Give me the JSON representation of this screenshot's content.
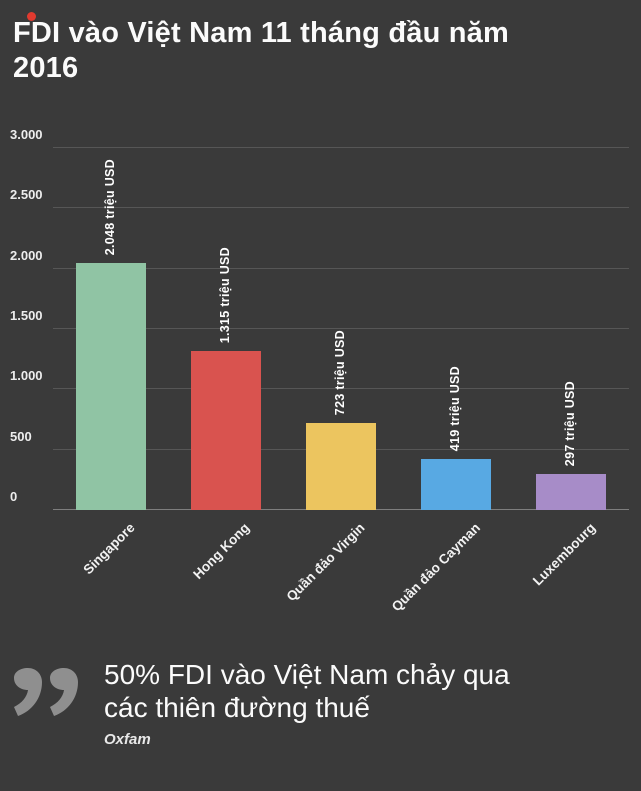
{
  "page": {
    "title": "FDI vào Việt Nam 11 tháng đầu năm 2016"
  },
  "chart_data": {
    "type": "bar",
    "title": "FDI vào Việt Nam 11 tháng đầu năm 2016",
    "categories": [
      "Singapore",
      "Hong Kong",
      "Quần đảo Virgin",
      "Quần đảo Cayman",
      "Luxembourg"
    ],
    "values": [
      2048,
      1315,
      723,
      419,
      297
    ],
    "value_labels": [
      "2.048 triệu USD",
      "1.315 triệu USD",
      "723 triệu USD",
      "419 triệu USD",
      "297 triệu USD"
    ],
    "bar_colors": [
      "#90c4a4",
      "#d9534f",
      "#ecc55f",
      "#58a9e3",
      "#a78cc8"
    ],
    "unit": "triệu USD",
    "y_ticks": [
      0,
      500,
      1000,
      1500,
      2000,
      2500,
      3000
    ],
    "y_tick_labels": [
      "0",
      "500",
      "1.000",
      "1.500",
      "2.000",
      "2.500",
      "3.000"
    ],
    "ylim": [
      0,
      3000
    ],
    "xlabel": "",
    "ylabel": "",
    "grid": true,
    "legend": false
  },
  "quote": {
    "text": "50% FDI vào Việt Nam chảy qua các thiên đường thuế",
    "attribution": "Oxfam"
  },
  "colors": {
    "background": "#3a3a3a",
    "gridline": "#565656",
    "quote_mark": "#8f8f8f",
    "accent_dot": "#e03a2f",
    "text": "#ffffff"
  }
}
